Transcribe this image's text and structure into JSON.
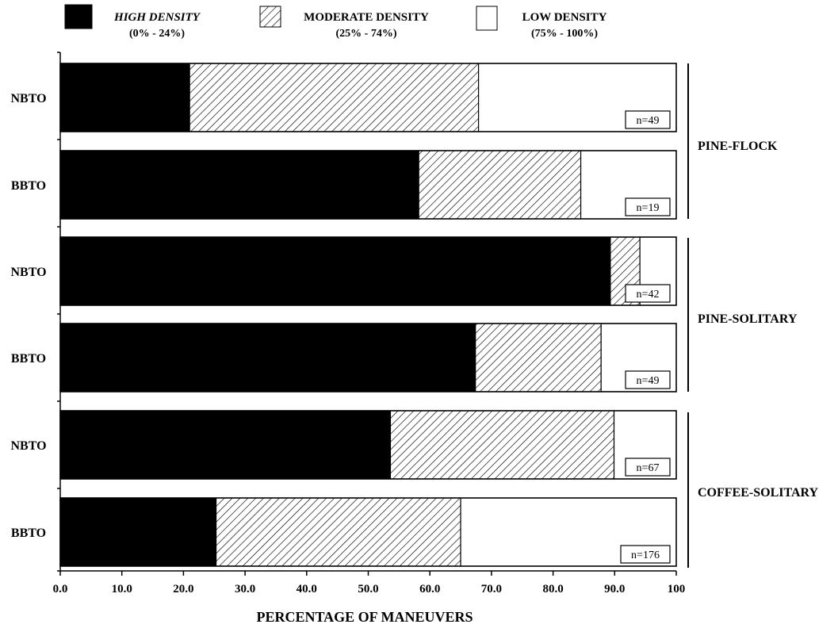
{
  "chart_data": {
    "type": "bar",
    "orientation": "horizontal",
    "stacked": true,
    "title": "",
    "xlabel": "PERCENTAGE OF MANEUVERS",
    "ylabel": "",
    "xlim": [
      0,
      100
    ],
    "xticks": [
      "0.0",
      "10.0",
      "20.0",
      "30.0",
      "40.0",
      "50.0",
      "60.0",
      "70.0",
      "80.0",
      "90.0",
      "100"
    ],
    "legend_position": "top",
    "legend": [
      {
        "name": "HIGH DENSITY",
        "range": "(0% - 24%)",
        "fill": "solid-black",
        "italic": true
      },
      {
        "name": "MODERATE DENSITY",
        "range": "(25% - 74%)",
        "fill": "diagonal-hatch",
        "italic": false
      },
      {
        "name": "LOW DENSITY",
        "range": "(75% - 100%)",
        "fill": "white",
        "italic": false
      }
    ],
    "categories": [
      "NBTO",
      "BBTO",
      "NBTO",
      "BBTO",
      "NBTO",
      "BBTO"
    ],
    "groups": [
      {
        "label": "PINE-FLOCK",
        "rows": [
          0,
          1
        ]
      },
      {
        "label": "PINE-SOLITARY",
        "rows": [
          2,
          3
        ]
      },
      {
        "label": "COFFEE-SOLITARY",
        "rows": [
          4,
          5
        ]
      }
    ],
    "n_labels": [
      "n=49",
      "n=19",
      "n=42",
      "n=49",
      "n=67",
      "n=176"
    ],
    "series": [
      {
        "name": "HIGH DENSITY",
        "values": [
          21.0,
          58.2,
          89.3,
          67.4,
          53.6,
          25.3
        ]
      },
      {
        "name": "MODERATE DENSITY",
        "values": [
          46.9,
          26.3,
          4.8,
          20.4,
          36.3,
          39.7
        ]
      },
      {
        "name": "LOW DENSITY",
        "values": [
          32.1,
          15.5,
          5.9,
          12.2,
          10.1,
          35.0
        ]
      }
    ],
    "colors": {
      "high": "#000000",
      "moderate_hatch": "#000000",
      "low": "#ffffff",
      "outline": "#000000"
    }
  }
}
